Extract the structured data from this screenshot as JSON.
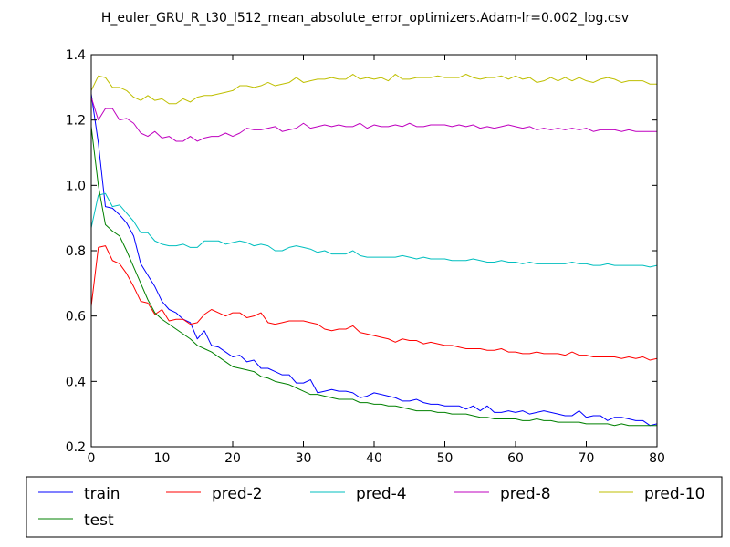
{
  "chart_data": {
    "type": "line",
    "title": "H_euler_GRU_R_t30_l512_mean_absolute_error_optimizers.Adam-lr=0.002_log.csv",
    "xlabel": "",
    "ylabel": "",
    "xlim": [
      0,
      80
    ],
    "ylim": [
      0.2,
      1.4
    ],
    "xticks": [
      "0",
      "10",
      "20",
      "30",
      "40",
      "50",
      "60",
      "70",
      "80"
    ],
    "yticks": [
      "0.2",
      "0.4",
      "0.6",
      "0.8",
      "1.0",
      "1.2",
      "1.4"
    ],
    "grid": false,
    "legend_position": "bottom",
    "legend_labels": {
      "train": "train",
      "pred2": "pred-2",
      "pred4": "pred-4",
      "pred8": "pred-8",
      "pred10": "pred-10",
      "test": "test"
    },
    "series": [
      {
        "name": "train",
        "color": "#0000ff",
        "values": [
          1.28,
          1.13,
          0.935,
          0.93,
          0.91,
          0.885,
          0.845,
          0.76,
          0.725,
          0.69,
          0.645,
          0.62,
          0.61,
          0.59,
          0.58,
          0.53,
          0.555,
          0.51,
          0.505,
          0.49,
          0.475,
          0.48,
          0.46,
          0.465,
          0.44,
          0.44,
          0.43,
          0.42,
          0.42,
          0.395,
          0.395,
          0.405,
          0.365,
          0.37,
          0.375,
          0.37,
          0.37,
          0.365,
          0.35,
          0.355,
          0.365,
          0.36,
          0.355,
          0.35,
          0.34,
          0.34,
          0.345,
          0.335,
          0.33,
          0.33,
          0.325,
          0.325,
          0.325,
          0.315,
          0.325,
          0.31,
          0.325,
          0.305,
          0.305,
          0.31,
          0.305,
          0.31,
          0.3,
          0.305,
          0.31,
          0.305,
          0.3,
          0.295,
          0.295,
          0.31,
          0.29,
          0.295,
          0.295,
          0.28,
          0.29,
          0.29,
          0.285,
          0.28,
          0.28,
          0.265,
          0.27
        ]
      },
      {
        "name": "pred-2",
        "color": "#ff0000",
        "values": [
          0.63,
          0.81,
          0.815,
          0.77,
          0.76,
          0.73,
          0.69,
          0.645,
          0.64,
          0.605,
          0.62,
          0.585,
          0.59,
          0.59,
          0.575,
          0.58,
          0.605,
          0.62,
          0.61,
          0.6,
          0.61,
          0.61,
          0.595,
          0.6,
          0.61,
          0.58,
          0.575,
          0.58,
          0.585,
          0.585,
          0.585,
          0.58,
          0.575,
          0.56,
          0.555,
          0.56,
          0.56,
          0.57,
          0.55,
          0.545,
          0.54,
          0.535,
          0.53,
          0.52,
          0.53,
          0.525,
          0.525,
          0.515,
          0.52,
          0.515,
          0.51,
          0.51,
          0.505,
          0.5,
          0.5,
          0.5,
          0.495,
          0.495,
          0.5,
          0.49,
          0.49,
          0.485,
          0.485,
          0.49,
          0.485,
          0.485,
          0.485,
          0.48,
          0.49,
          0.48,
          0.48,
          0.475,
          0.475,
          0.475,
          0.475,
          0.47,
          0.475,
          0.47,
          0.475,
          0.465,
          0.47
        ]
      },
      {
        "name": "pred-4",
        "color": "#00bfbf",
        "values": [
          0.87,
          0.97,
          0.975,
          0.935,
          0.94,
          0.915,
          0.89,
          0.855,
          0.855,
          0.83,
          0.82,
          0.815,
          0.815,
          0.82,
          0.81,
          0.81,
          0.83,
          0.83,
          0.83,
          0.82,
          0.825,
          0.83,
          0.825,
          0.815,
          0.82,
          0.815,
          0.8,
          0.8,
          0.81,
          0.815,
          0.81,
          0.805,
          0.795,
          0.8,
          0.79,
          0.79,
          0.79,
          0.8,
          0.785,
          0.78,
          0.78,
          0.78,
          0.78,
          0.78,
          0.785,
          0.78,
          0.775,
          0.78,
          0.775,
          0.775,
          0.775,
          0.77,
          0.77,
          0.77,
          0.775,
          0.77,
          0.765,
          0.765,
          0.77,
          0.765,
          0.765,
          0.76,
          0.765,
          0.76,
          0.76,
          0.76,
          0.76,
          0.76,
          0.765,
          0.76,
          0.76,
          0.755,
          0.755,
          0.76,
          0.755,
          0.755,
          0.755,
          0.755,
          0.755,
          0.75,
          0.755
        ]
      },
      {
        "name": "pred-8",
        "color": "#bf00bf",
        "values": [
          1.27,
          1.2,
          1.235,
          1.235,
          1.2,
          1.205,
          1.19,
          1.16,
          1.15,
          1.165,
          1.145,
          1.15,
          1.135,
          1.135,
          1.15,
          1.135,
          1.145,
          1.15,
          1.15,
          1.16,
          1.15,
          1.16,
          1.175,
          1.17,
          1.17,
          1.175,
          1.18,
          1.165,
          1.17,
          1.175,
          1.19,
          1.175,
          1.18,
          1.185,
          1.18,
          1.185,
          1.18,
          1.18,
          1.19,
          1.175,
          1.185,
          1.18,
          1.18,
          1.185,
          1.18,
          1.19,
          1.18,
          1.18,
          1.185,
          1.185,
          1.185,
          1.18,
          1.185,
          1.18,
          1.185,
          1.175,
          1.18,
          1.175,
          1.18,
          1.185,
          1.18,
          1.175,
          1.18,
          1.17,
          1.175,
          1.17,
          1.175,
          1.17,
          1.175,
          1.17,
          1.175,
          1.165,
          1.17,
          1.17,
          1.17,
          1.165,
          1.17,
          1.165,
          1.165,
          1.165,
          1.165
        ]
      },
      {
        "name": "pred-10",
        "color": "#bfbf00",
        "values": [
          1.29,
          1.335,
          1.33,
          1.3,
          1.3,
          1.29,
          1.27,
          1.26,
          1.275,
          1.26,
          1.265,
          1.25,
          1.25,
          1.265,
          1.255,
          1.27,
          1.275,
          1.275,
          1.28,
          1.285,
          1.29,
          1.305,
          1.305,
          1.3,
          1.305,
          1.315,
          1.305,
          1.31,
          1.315,
          1.33,
          1.315,
          1.32,
          1.325,
          1.325,
          1.33,
          1.325,
          1.325,
          1.34,
          1.325,
          1.33,
          1.325,
          1.33,
          1.32,
          1.34,
          1.325,
          1.325,
          1.33,
          1.33,
          1.33,
          1.335,
          1.33,
          1.33,
          1.33,
          1.34,
          1.33,
          1.325,
          1.33,
          1.33,
          1.335,
          1.325,
          1.335,
          1.325,
          1.33,
          1.315,
          1.32,
          1.33,
          1.32,
          1.33,
          1.32,
          1.33,
          1.32,
          1.315,
          1.325,
          1.33,
          1.325,
          1.315,
          1.32,
          1.32,
          1.32,
          1.31,
          1.31
        ]
      },
      {
        "name": "test",
        "color": "#008000",
        "values": [
          1.18,
          1.0,
          0.88,
          0.86,
          0.845,
          0.8,
          0.75,
          0.7,
          0.65,
          0.61,
          0.59,
          0.575,
          0.56,
          0.545,
          0.53,
          0.51,
          0.5,
          0.49,
          0.475,
          0.46,
          0.445,
          0.44,
          0.435,
          0.43,
          0.415,
          0.41,
          0.4,
          0.395,
          0.39,
          0.38,
          0.37,
          0.36,
          0.36,
          0.355,
          0.35,
          0.345,
          0.345,
          0.345,
          0.335,
          0.335,
          0.33,
          0.33,
          0.325,
          0.325,
          0.32,
          0.315,
          0.31,
          0.31,
          0.31,
          0.305,
          0.305,
          0.3,
          0.3,
          0.3,
          0.295,
          0.29,
          0.29,
          0.285,
          0.285,
          0.285,
          0.285,
          0.28,
          0.28,
          0.285,
          0.28,
          0.28,
          0.275,
          0.275,
          0.275,
          0.275,
          0.27,
          0.27,
          0.27,
          0.27,
          0.265,
          0.27,
          0.265,
          0.265,
          0.265,
          0.265,
          0.265
        ]
      }
    ]
  }
}
